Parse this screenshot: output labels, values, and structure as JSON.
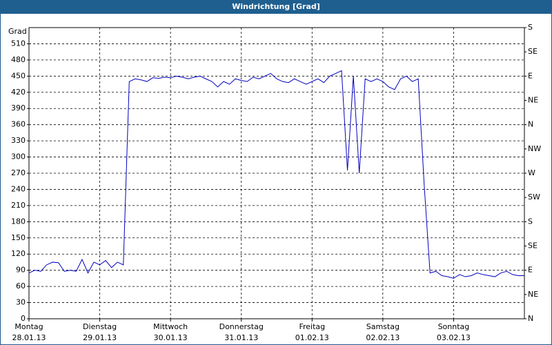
{
  "chart_data": {
    "type": "line",
    "title": "Windrichtung [Grad]",
    "ylabel": "Grad",
    "color": "#0000c0",
    "grid": true,
    "x": [
      0,
      2,
      4,
      6,
      8,
      10,
      12,
      14,
      16,
      18,
      20,
      22,
      24,
      26,
      28,
      30,
      32,
      34,
      36,
      38,
      40,
      42,
      44,
      46,
      48,
      50,
      52,
      54,
      56,
      58,
      60,
      62,
      64,
      66,
      68,
      70,
      72,
      74,
      76,
      78,
      80,
      82,
      84,
      86,
      88,
      90,
      92,
      94,
      96,
      98,
      100,
      102,
      104,
      106,
      108,
      110,
      112,
      114,
      116,
      118,
      120,
      122,
      124,
      126,
      128,
      130,
      132,
      134,
      136,
      138,
      140,
      142,
      144,
      146,
      148,
      150,
      152,
      154,
      156,
      158,
      160,
      162,
      164,
      166,
      168
    ],
    "values": [
      85,
      90,
      88,
      100,
      105,
      104,
      88,
      90,
      88,
      110,
      85,
      105,
      100,
      108,
      95,
      105,
      100,
      440,
      445,
      443,
      440,
      447,
      446,
      448,
      447,
      450,
      448,
      445,
      448,
      450,
      445,
      440,
      430,
      440,
      435,
      445,
      442,
      440,
      448,
      445,
      450,
      455,
      445,
      440,
      438,
      445,
      440,
      435,
      440,
      445,
      438,
      450,
      455,
      460,
      275,
      450,
      270,
      445,
      440,
      445,
      440,
      430,
      425,
      445,
      450,
      440,
      445,
      250,
      85,
      88,
      80,
      78,
      75,
      82,
      78,
      80,
      85,
      82,
      80,
      78,
      85,
      88,
      82,
      80,
      80
    ],
    "xlim": [
      0,
      168
    ],
    "xticks": [
      {
        "value": 0,
        "label": [
          "Montag",
          "28.01.13"
        ]
      },
      {
        "value": 24,
        "label": [
          "Dienstag",
          "29.01.13"
        ]
      },
      {
        "value": 48,
        "label": [
          "Mittwoch",
          "30.01.13"
        ]
      },
      {
        "value": 72,
        "label": [
          "Donnerstag",
          "31.01.13"
        ]
      },
      {
        "value": 96,
        "label": [
          "Freitag",
          "01.02.13"
        ]
      },
      {
        "value": 120,
        "label": [
          "Samstag",
          "02.02.13"
        ]
      },
      {
        "value": 144,
        "label": [
          "Sonntag",
          "03.02.13"
        ]
      }
    ],
    "ylim": [
      0,
      540
    ],
    "yticks": [
      0,
      30,
      60,
      90,
      120,
      150,
      180,
      210,
      240,
      270,
      300,
      330,
      360,
      390,
      420,
      450,
      480,
      510
    ],
    "y2lim": [
      0,
      540
    ],
    "y2ticks": [
      {
        "value": 0,
        "label": "N"
      },
      {
        "value": 45,
        "label": "NE"
      },
      {
        "value": 90,
        "label": "E"
      },
      {
        "value": 135,
        "label": "SE"
      },
      {
        "value": 180,
        "label": "S"
      },
      {
        "value": 225,
        "label": "SW"
      },
      {
        "value": 270,
        "label": "W"
      },
      {
        "value": 315,
        "label": "NW"
      },
      {
        "value": 360,
        "label": "N"
      },
      {
        "value": 405,
        "label": "NE"
      },
      {
        "value": 450,
        "label": "E"
      },
      {
        "value": 495,
        "label": "SE"
      },
      {
        "value": 540,
        "label": "S"
      }
    ]
  }
}
